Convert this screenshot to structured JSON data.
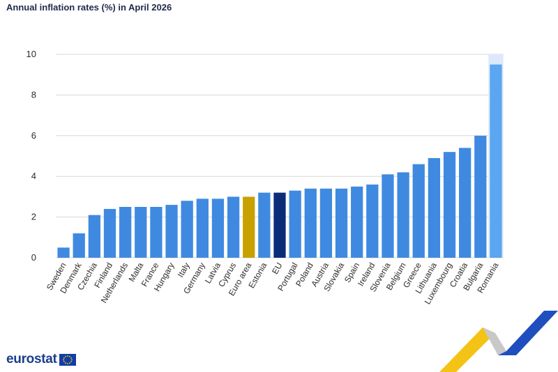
{
  "title": "Annual inflation rates (%) in April 2026",
  "logo_text": "eurostat",
  "colors": {
    "bar": "#3f8ae0",
    "euro_area": "#c8a000",
    "eu": "#0b2d78",
    "last_bar": "#5aa6f0",
    "last_bar_bg": "#dce9fb",
    "grid": "#d7d7d7",
    "decor_yellow": "#f3c315",
    "decor_blue": "#1f4fbf",
    "decor_grey": "#c8c8c8"
  },
  "chart_data": {
    "type": "bar",
    "title": "Annual inflation rates (%) in April 2026",
    "categories": [
      "Sweden",
      "Denmark",
      "Czechia",
      "Finland",
      "Netherlands",
      "Malta",
      "France",
      "Hungary",
      "Italy",
      "Germany",
      "Latvia",
      "Cyprus",
      "Euro area",
      "Estonia",
      "EU",
      "Portugal",
      "Poland",
      "Austria",
      "Slovakia",
      "Spain",
      "Ireland",
      "Slovenia",
      "Belgium",
      "Greece",
      "Lithuania",
      "Luxembourg",
      "Croatia",
      "Bulgaria",
      "Romania"
    ],
    "values": [
      0.5,
      1.2,
      2.1,
      2.4,
      2.5,
      2.5,
      2.5,
      2.6,
      2.8,
      2.9,
      2.9,
      3.0,
      3.0,
      3.2,
      3.2,
      3.3,
      3.4,
      3.4,
      3.4,
      3.5,
      3.6,
      4.1,
      4.2,
      4.6,
      4.9,
      5.2,
      5.4,
      6.0,
      9.5
    ],
    "highlight": {
      "Euro area": "euro_area",
      "EU": "eu"
    },
    "yticks": [
      0,
      2,
      4,
      6,
      8,
      10
    ],
    "ylim": [
      0,
      10
    ],
    "xlabel": "",
    "ylabel": "",
    "grid": true,
    "legend": "none"
  }
}
